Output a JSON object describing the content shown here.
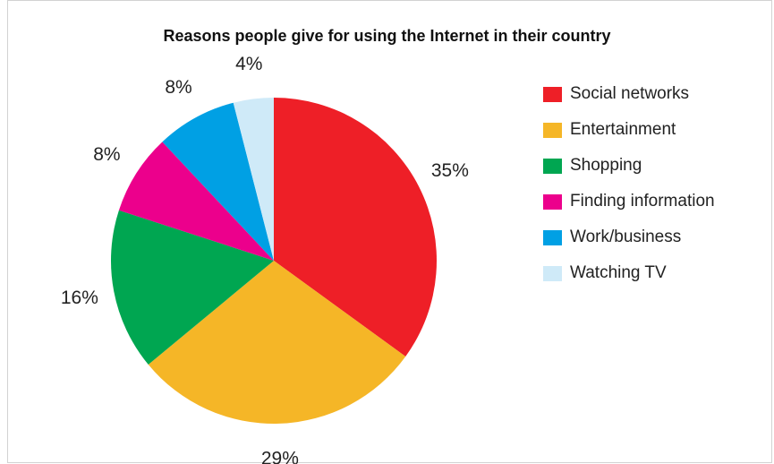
{
  "chart_data": {
    "type": "pie",
    "title": "Reasons people give for using the Internet in their country",
    "categories": [
      "Social networks",
      "Entertainment",
      "Shopping",
      "Finding information",
      "Work/business",
      "Watching TV"
    ],
    "values": [
      35,
      29,
      16,
      8,
      8,
      4
    ],
    "labels": [
      "35%",
      "29%",
      "16%",
      "8%",
      "8%",
      "4%"
    ],
    "colors": [
      "#ee1f27",
      "#f5b627",
      "#00a651",
      "#ec008c",
      "#00a0e4",
      "#cfeaf8"
    ],
    "start": "12 o'clock",
    "direction": "clockwise",
    "legend_position": "right"
  }
}
